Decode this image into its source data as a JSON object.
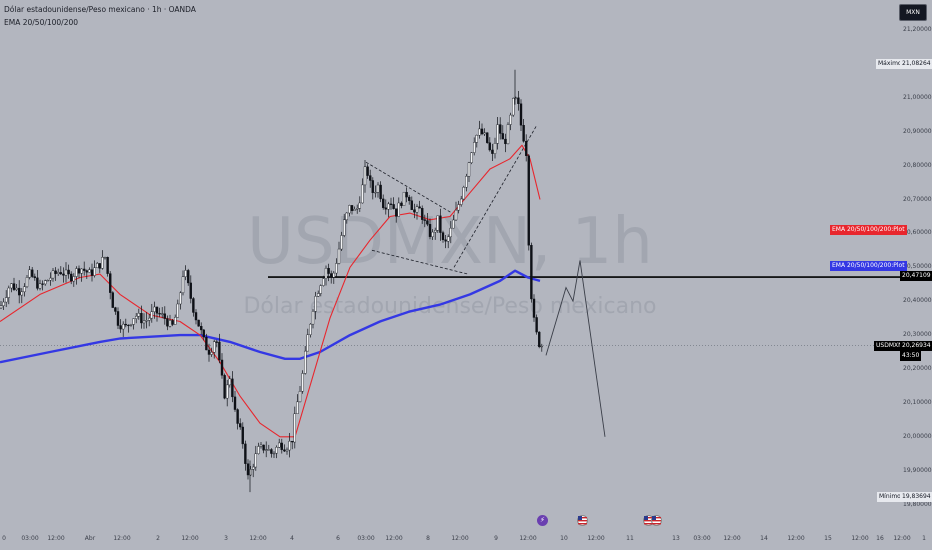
{
  "header": {
    "title": "Dólar estadounidense/Peso mexicano · 1h · OANDA",
    "indicator": "EMA 20/50/100/200"
  },
  "chart_mode_button": "MXN",
  "watermark": {
    "symbol": "USDMXN, 1h",
    "name": "Dólar estadounidense/Peso mexicano"
  },
  "price_axis": {
    "ticks": [
      "21,20000",
      "21,10000",
      "21,00000",
      "20,90000",
      "20,80000",
      "20,70000",
      "20,60000",
      "20,50000",
      "20,40000",
      "20,30000",
      "20,20000",
      "20,10000",
      "20,00000",
      "19,90000",
      "19,80000"
    ],
    "max_label": "Máximo",
    "max_value": "21,08264",
    "min_label": "Mínimo",
    "min_value": "19,83694",
    "ema_red_label": "EMA 20/50/100/200:Plot",
    "ema_blue_label": "EMA 20/50/100/200:Plot",
    "level_value": "20,47109",
    "symbol_tag": "USDMXN",
    "last_price": "20,26934",
    "countdown": "43:50"
  },
  "time_axis": [
    "0",
    "03:00",
    "12:00",
    "Abr",
    "12:00",
    "2",
    "12:00",
    "3",
    "12:00",
    "4",
    "6",
    "03:00",
    "12:00",
    "8",
    "12:00",
    "9",
    "12:00",
    "10",
    "12:00",
    "11",
    "13",
    "03:00",
    "12:00",
    "14",
    "12:00",
    "15",
    "12:00",
    "16",
    "12:00",
    "1"
  ],
  "events": [
    "flash-event-icon",
    "us-flag-icon",
    "us-flag-icon"
  ],
  "colors": {
    "background": "#b3b6bf",
    "candle": "#0e1117",
    "ema_fast": "#e8262d",
    "ema_slow": "#3438e4",
    "hline": "#000000",
    "axis": "#3c404b"
  },
  "chart_data": {
    "type": "candlestick",
    "symbol": "USDMXN",
    "timeframe": "1h",
    "ylim": [
      19.78,
      21.2
    ],
    "key_levels": {
      "maximum": 21.08264,
      "minimum": 19.83694,
      "horizontal_level": 20.47109,
      "last": 20.26934
    },
    "price_path": [
      [
        0,
        20.38
      ],
      [
        10,
        20.45
      ],
      [
        20,
        20.43
      ],
      [
        30,
        20.48
      ],
      [
        40,
        20.44
      ],
      [
        50,
        20.47
      ],
      [
        60,
        20.49
      ],
      [
        70,
        20.47
      ],
      [
        80,
        20.5
      ],
      [
        90,
        20.48
      ],
      [
        100,
        20.51
      ],
      [
        105,
        20.53
      ],
      [
        112,
        20.4
      ],
      [
        118,
        20.34
      ],
      [
        125,
        20.32
      ],
      [
        135,
        20.36
      ],
      [
        145,
        20.34
      ],
      [
        155,
        20.37
      ],
      [
        165,
        20.35
      ],
      [
        172,
        20.32
      ],
      [
        178,
        20.38
      ],
      [
        184,
        20.5
      ],
      [
        190,
        20.42
      ],
      [
        195,
        20.36
      ],
      [
        200,
        20.32
      ],
      [
        205,
        20.27
      ],
      [
        210,
        20.25
      ],
      [
        216,
        20.3
      ],
      [
        220,
        20.2
      ],
      [
        225,
        20.12
      ],
      [
        230,
        20.18
      ],
      [
        236,
        20.05
      ],
      [
        242,
        20.0
      ],
      [
        248,
        19.88
      ],
      [
        253,
        19.92
      ],
      [
        258,
        19.96
      ],
      [
        265,
        19.97
      ],
      [
        272,
        19.95
      ],
      [
        280,
        19.98
      ],
      [
        286,
        19.97
      ],
      [
        292,
        19.99
      ],
      [
        296,
        20.08
      ],
      [
        302,
        20.17
      ],
      [
        308,
        20.3
      ],
      [
        314,
        20.4
      ],
      [
        320,
        20.45
      ],
      [
        326,
        20.5
      ],
      [
        332,
        20.46
      ],
      [
        338,
        20.54
      ],
      [
        344,
        20.63
      ],
      [
        350,
        20.68
      ],
      [
        356,
        20.66
      ],
      [
        362,
        20.73
      ],
      [
        366,
        20.8
      ],
      [
        372,
        20.72
      ],
      [
        378,
        20.74
      ],
      [
        384,
        20.68
      ],
      [
        390,
        20.7
      ],
      [
        396,
        20.66
      ],
      [
        402,
        20.7
      ],
      [
        408,
        20.72
      ],
      [
        414,
        20.66
      ],
      [
        420,
        20.67
      ],
      [
        426,
        20.62
      ],
      [
        432,
        20.59
      ],
      [
        438,
        20.64
      ],
      [
        444,
        20.56
      ],
      [
        450,
        20.6
      ],
      [
        456,
        20.66
      ],
      [
        462,
        20.72
      ],
      [
        468,
        20.8
      ],
      [
        474,
        20.88
      ],
      [
        480,
        20.9
      ],
      [
        486,
        20.88
      ],
      [
        492,
        20.82
      ],
      [
        498,
        20.92
      ],
      [
        504,
        20.86
      ],
      [
        510,
        20.93
      ],
      [
        514,
        21.0
      ],
      [
        518,
        20.98
      ],
      [
        522,
        20.9
      ],
      [
        526,
        20.86
      ],
      [
        530,
        20.46
      ],
      [
        534,
        20.34
      ],
      [
        538,
        20.28
      ],
      [
        542,
        20.27
      ]
    ],
    "ema_fast_path": [
      [
        0,
        20.34
      ],
      [
        40,
        20.42
      ],
      [
        80,
        20.47
      ],
      [
        100,
        20.48
      ],
      [
        120,
        20.42
      ],
      [
        150,
        20.36
      ],
      [
        180,
        20.34
      ],
      [
        200,
        20.3
      ],
      [
        220,
        20.22
      ],
      [
        240,
        20.12
      ],
      [
        260,
        20.04
      ],
      [
        280,
        20.0
      ],
      [
        295,
        20.0
      ],
      [
        310,
        20.15
      ],
      [
        330,
        20.35
      ],
      [
        350,
        20.5
      ],
      [
        370,
        20.58
      ],
      [
        390,
        20.65
      ],
      [
        410,
        20.66
      ],
      [
        430,
        20.64
      ],
      [
        450,
        20.65
      ],
      [
        470,
        20.72
      ],
      [
        490,
        20.79
      ],
      [
        510,
        20.82
      ],
      [
        522,
        20.86
      ],
      [
        530,
        20.82
      ],
      [
        540,
        20.7
      ]
    ],
    "ema_slow_path": [
      [
        0,
        20.22
      ],
      [
        50,
        20.25
      ],
      [
        100,
        20.28
      ],
      [
        120,
        20.29
      ],
      [
        180,
        20.3
      ],
      [
        200,
        20.3
      ],
      [
        230,
        20.28
      ],
      [
        260,
        20.25
      ],
      [
        285,
        20.23
      ],
      [
        300,
        20.23
      ],
      [
        320,
        20.25
      ],
      [
        350,
        20.3
      ],
      [
        380,
        20.34
      ],
      [
        410,
        20.37
      ],
      [
        440,
        20.39
      ],
      [
        470,
        20.42
      ],
      [
        500,
        20.46
      ],
      [
        515,
        20.49
      ],
      [
        528,
        20.47
      ],
      [
        540,
        20.46
      ]
    ],
    "drawings": {
      "horizontal_line": 20.47109,
      "flag_upper": [
        [
          366,
          20.81
        ],
        [
          452,
          20.66
        ]
      ],
      "flag_lower": [
        [
          372,
          20.55
        ],
        [
          468,
          20.48
        ]
      ],
      "rising_wedge": [
        [
          454,
          20.5
        ],
        [
          537,
          20.92
        ]
      ],
      "projection": [
        [
          546,
          20.24
        ],
        [
          566,
          20.44
        ],
        [
          573,
          20.4
        ],
        [
          580,
          20.52
        ],
        [
          605,
          20.0
        ]
      ]
    }
  }
}
